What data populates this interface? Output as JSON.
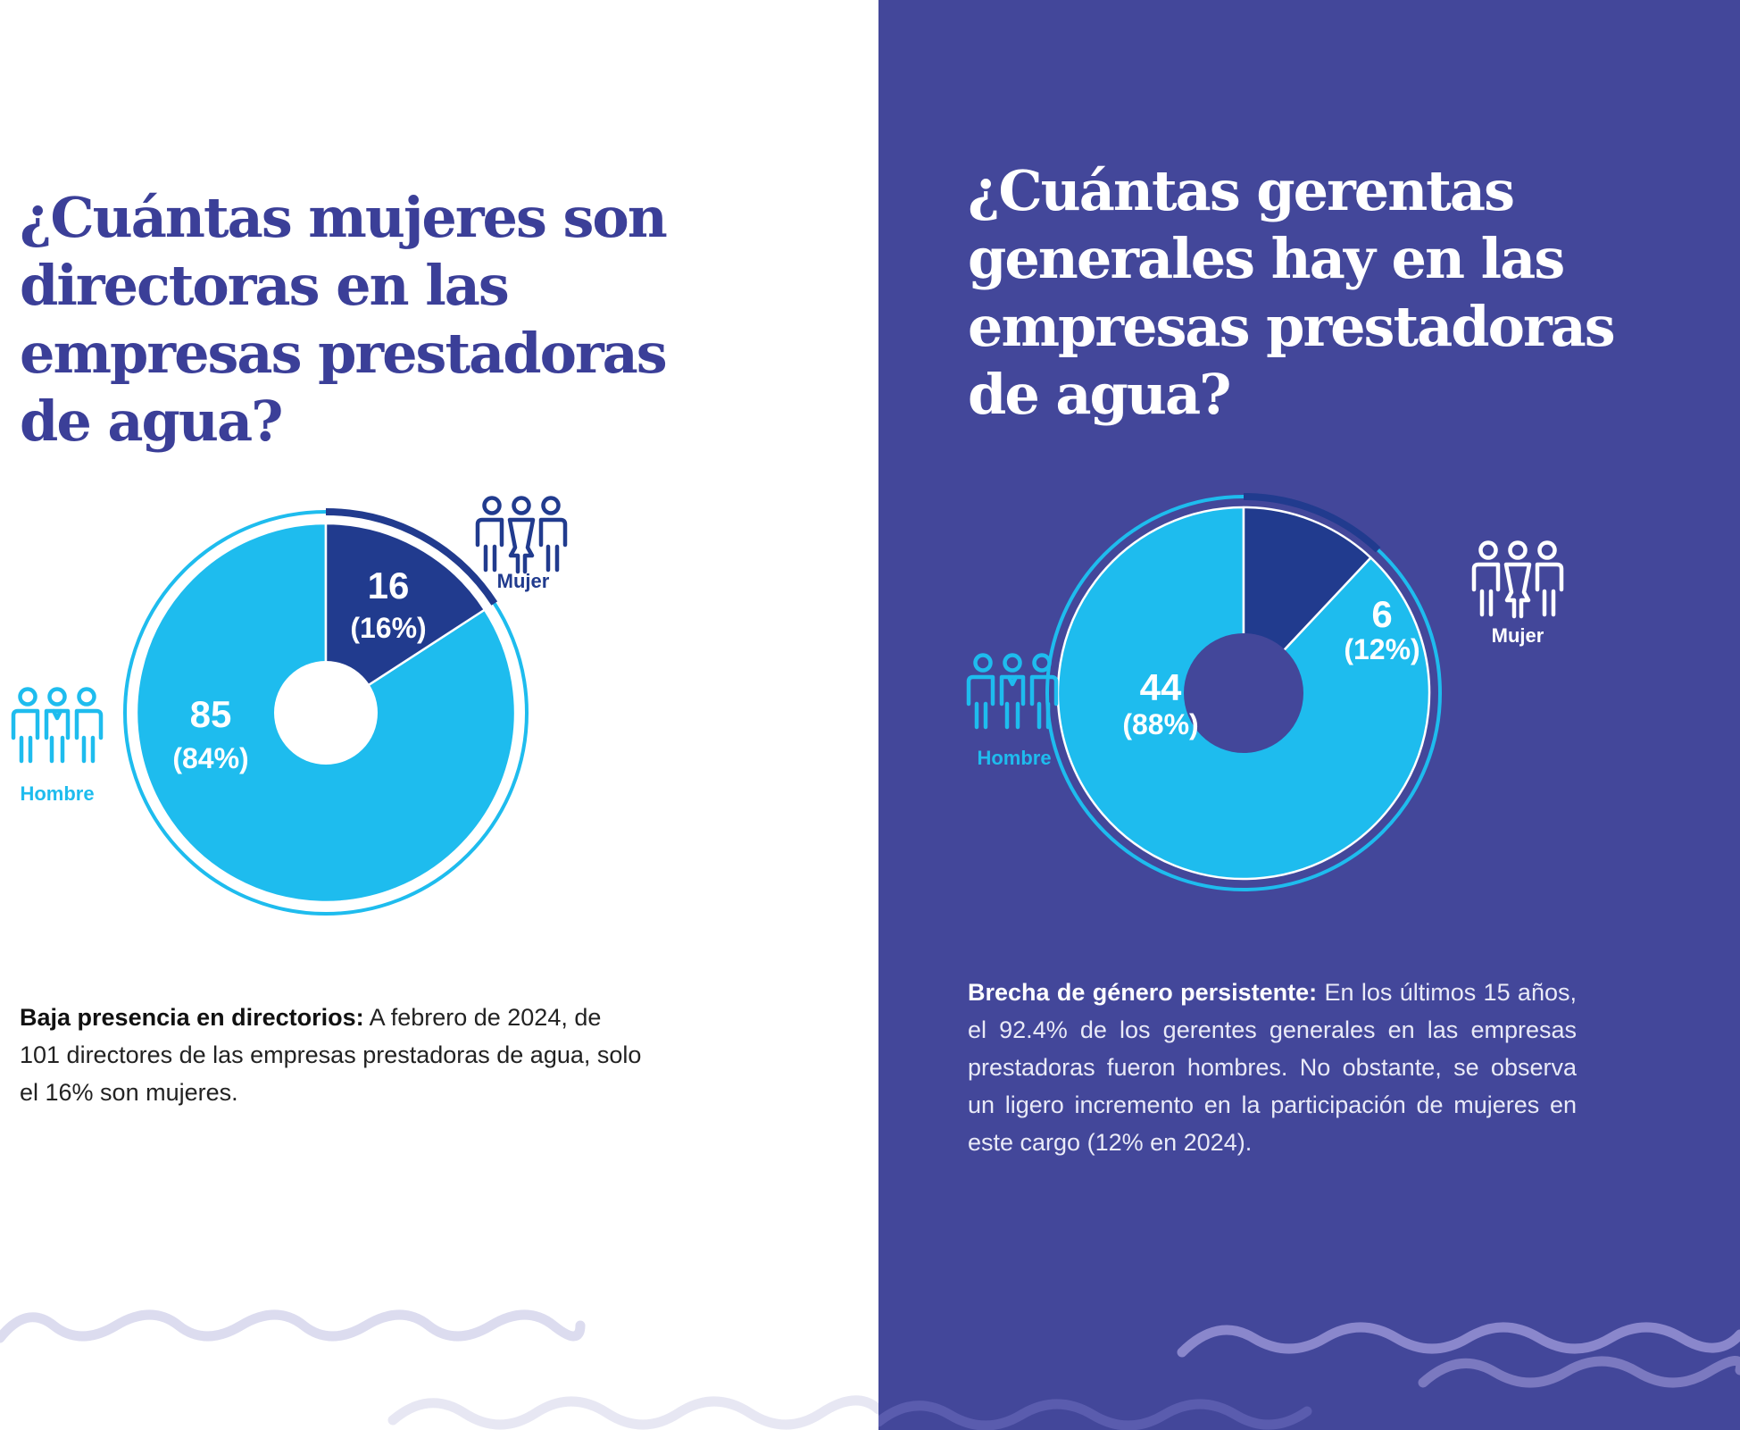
{
  "left": {
    "title": "¿Cuántas mujeres son directoras en las empresas prestadoras de agua?",
    "desc_bold": "Baja presencia en directorios:",
    "desc_text": " A febrero de 2024, de 101 directores de las empresas prestadoras de agua, solo el 16% son mujeres."
  },
  "right": {
    "title": "¿Cuántas gerentas generales hay en las empresas prestadoras de agua?",
    "desc_bold": "Brecha de género persistente:",
    "desc_text": " En los últimos 15 años, el 92.4% de los gerentes generales en las empresas prestadoras fueron hombres. No obstante, se observa un ligero incremento en la participación de mujeres en este cargo (12% en 2024)."
  },
  "colors": {
    "hombre": "#1ebcee",
    "mujer": "#213b8e",
    "left_bg": "#ffffff",
    "right_bg": "#43479a"
  },
  "icons": {
    "hombre": "men-group-icon",
    "mujer": "women-group-icon"
  },
  "chart_data": [
    {
      "type": "pie",
      "title": "¿Cuántas mujeres son directoras en las empresas prestadoras de agua?",
      "categories": [
        "Hombre",
        "Mujer"
      ],
      "values": [
        85,
        16
      ],
      "value_labels": [
        "85",
        "16"
      ],
      "percent_labels": [
        "(84%)",
        "(16%)"
      ],
      "legend": [
        "Hombre",
        "Mujer"
      ]
    },
    {
      "type": "pie",
      "title": "¿Cuántas gerentas generales hay en las empresas prestadoras de agua?",
      "categories": [
        "Hombre",
        "Mujer"
      ],
      "values": [
        44,
        6
      ],
      "value_labels": [
        "44",
        "6"
      ],
      "percent_labels": [
        "(88%)",
        "(12%)"
      ],
      "legend": [
        "Hombre",
        "Mujer"
      ]
    }
  ]
}
